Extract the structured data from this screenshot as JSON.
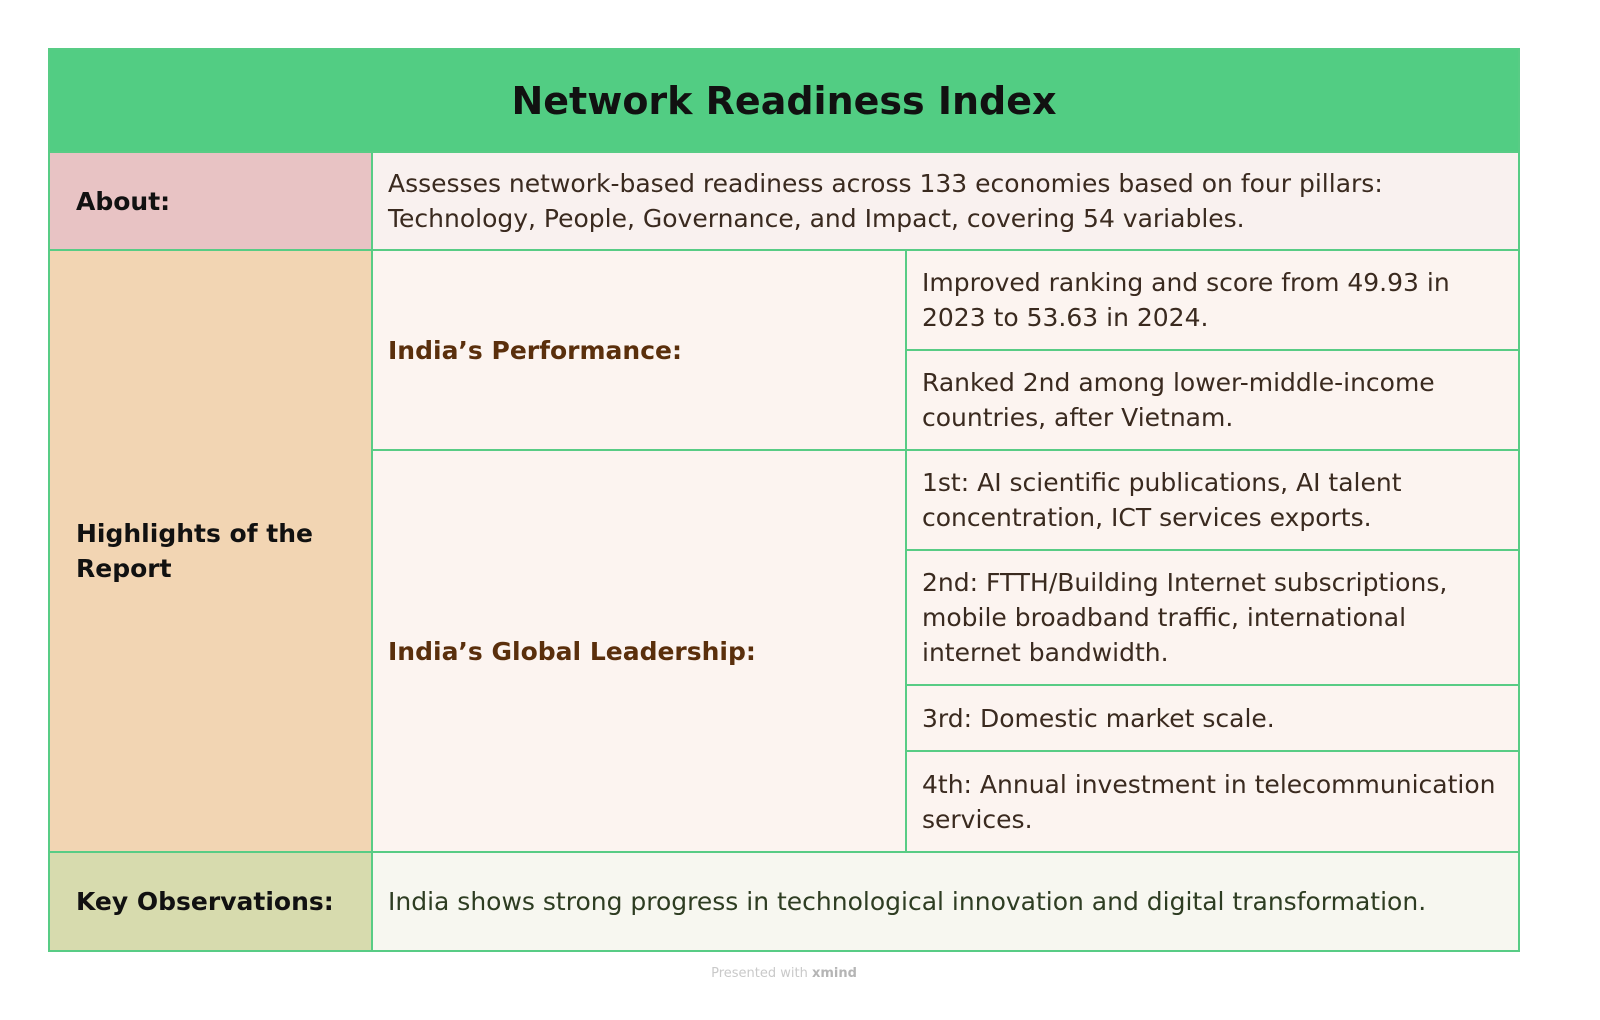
{
  "title": "Network Readiness Index",
  "about": {
    "label": "About:",
    "text": "Assesses network-based readiness across 133 economies based on four pillars: Technology, People, Governance, and Impact, covering 54 variables."
  },
  "highlights": {
    "label": "Highlights of the Report",
    "performance": {
      "label": "India’s Performance:",
      "items": [
        "Improved ranking and score from 49.93 in 2023 to 53.63 in 2024.",
        "Ranked 2nd among lower-middle-income countries, after Vietnam."
      ]
    },
    "leadership": {
      "label": "India’s Global Leadership:",
      "items": [
        "1st: AI scientific publications, AI talent concentration, ICT services exports.",
        "2nd: FTTH/Building Internet subscriptions, mobile broadband traffic, international internet bandwidth.",
        "3rd: Domestic market scale.",
        "4th: Annual investment in telecommunication services."
      ]
    }
  },
  "observations": {
    "label": "Key Observations:",
    "text": "India shows strong progress in technological innovation and digital transformation."
  },
  "footer": {
    "prefix": "Presented with",
    "brand": "xmind"
  },
  "colors": {
    "header": "#52cd83",
    "border": "#58cc85",
    "about_label": "#e8c3c4",
    "highlights_label": "#f2d5b3",
    "observations_label": "#d7dbae"
  }
}
